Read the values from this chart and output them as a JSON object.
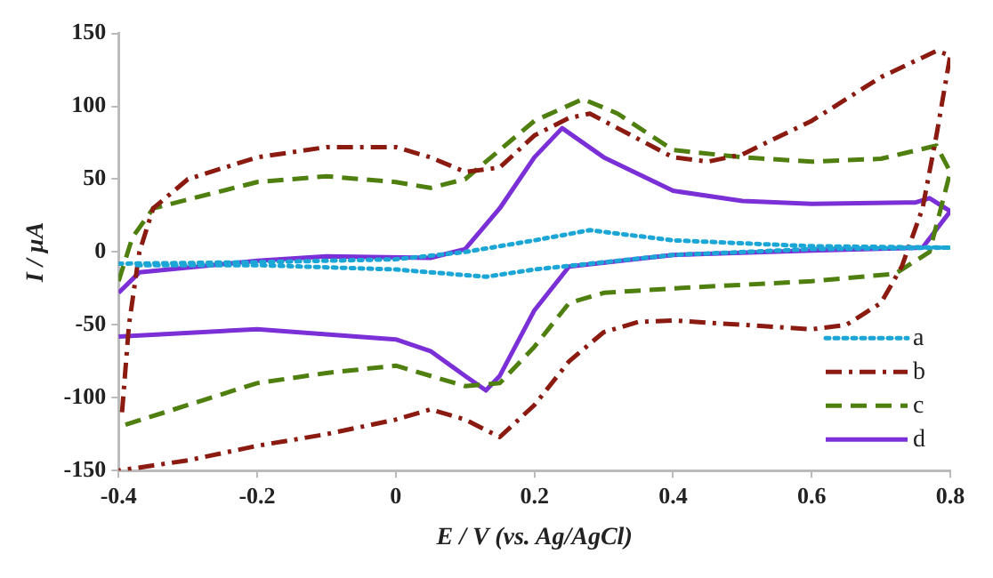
{
  "chart_data": {
    "type": "line",
    "xlabel": "E / V (vs. Ag/AgCl)",
    "ylabel": "I / µA",
    "xlim": [
      -0.4,
      0.8
    ],
    "xticks": [
      -0.4,
      -0.2,
      0,
      0.2,
      0.4,
      0.6,
      0.8
    ],
    "ylim": [
      -150,
      150
    ],
    "yticks": [
      -150,
      -100,
      -50,
      0,
      50,
      100,
      150
    ],
    "grid": false,
    "legend": "bottom right",
    "marker": "none",
    "series": [
      {
        "name": "a",
        "color": "#1ba6d6",
        "line_style": "dotted",
        "x": [
          -0.4,
          -0.2,
          0,
          0.1,
          0.2,
          0.28,
          0.4,
          0.6,
          0.8,
          0.6,
          0.4,
          0.2,
          0.13,
          0,
          -0.2,
          -0.38
        ],
        "values": [
          -8,
          -7,
          -5,
          0,
          8,
          15,
          8,
          4,
          3,
          2,
          -2,
          -12,
          -17,
          -12,
          -9,
          -9
        ]
      },
      {
        "name": "b",
        "color": "#8b1a10",
        "line_style": "dashdot",
        "x": [
          -0.395,
          -0.385,
          -0.37,
          -0.35,
          -0.3,
          -0.2,
          -0.1,
          0,
          0.05,
          0.1,
          0.15,
          0.2,
          0.25,
          0.28,
          0.32,
          0.4,
          0.45,
          0.5,
          0.6,
          0.7,
          0.78,
          0.8,
          0.78,
          0.76,
          0.73,
          0.7,
          0.65,
          0.6,
          0.5,
          0.4,
          0.35,
          0.3,
          0.25,
          0.2,
          0.15,
          0.1,
          0.05,
          0,
          -0.1,
          -0.2,
          -0.3,
          -0.4
        ],
        "values": [
          -110,
          -50,
          0,
          30,
          50,
          65,
          72,
          72,
          65,
          55,
          58,
          80,
          92,
          95,
          85,
          65,
          62,
          67,
          90,
          120,
          138,
          135,
          80,
          30,
          -10,
          -35,
          -50,
          -53,
          -50,
          -47,
          -48,
          -55,
          -75,
          -105,
          -127,
          -115,
          -108,
          -115,
          -125,
          -133,
          -143,
          -150
        ]
      },
      {
        "name": "c",
        "color": "#4f7f0f",
        "line_style": "dashed",
        "x": [
          -0.4,
          -0.38,
          -0.35,
          -0.2,
          -0.1,
          0,
          0.05,
          0.1,
          0.15,
          0.2,
          0.27,
          0.32,
          0.4,
          0.5,
          0.6,
          0.7,
          0.78,
          0.8,
          0.77,
          0.72,
          0.6,
          0.4,
          0.3,
          0.25,
          0.2,
          0.15,
          0.1,
          0,
          -0.1,
          -0.2,
          -0.3,
          -0.4
        ],
        "values": [
          -20,
          10,
          30,
          48,
          52,
          48,
          44,
          50,
          70,
          90,
          105,
          95,
          70,
          65,
          62,
          64,
          73,
          55,
          0,
          -15,
          -20,
          -25,
          -28,
          -35,
          -65,
          -90,
          -92,
          -78,
          -83,
          -90,
          -105,
          -120
        ]
      },
      {
        "name": "d",
        "color": "#7b2fd6",
        "line_style": "solid",
        "x": [
          -0.4,
          -0.37,
          -0.2,
          -0.1,
          0.05,
          0.1,
          0.15,
          0.2,
          0.24,
          0.3,
          0.4,
          0.5,
          0.6,
          0.75,
          0.77,
          0.8,
          0.76,
          0.6,
          0.4,
          0.25,
          0.2,
          0.15,
          0.13,
          0.1,
          0.05,
          0,
          -0.2,
          -0.4
        ],
        "values": [
          -28,
          -14,
          -6,
          -3,
          -4,
          2,
          30,
          65,
          85,
          65,
          42,
          35,
          33,
          34,
          37,
          28,
          3,
          1,
          -2,
          -10,
          -40,
          -85,
          -95,
          -85,
          -68,
          -60,
          -53,
          -58
        ]
      }
    ]
  }
}
